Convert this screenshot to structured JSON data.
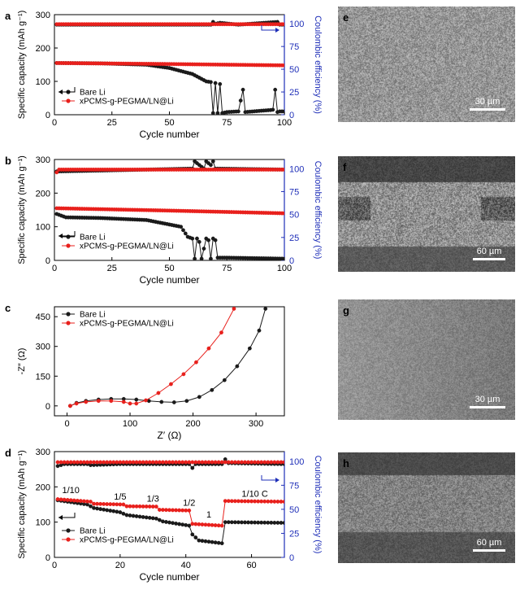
{
  "colors": {
    "bare": "#1a1a1a",
    "coated": "#e8201c",
    "ce_axis": "#1f2fb8"
  },
  "panels": [
    {
      "letter": "a",
      "xlabel": "Cycle number",
      "ylabel": "Specific capacity (mAh g⁻¹)",
      "y2label": "Coulombic efficiency (%)",
      "xlim": [
        0,
        100
      ],
      "xticks": [
        "0",
        "25",
        "50",
        "75",
        "100"
      ],
      "ylim": [
        0,
        300
      ],
      "yticks": [
        "0",
        "100",
        "200",
        "300"
      ],
      "y2lim": [
        0,
        110
      ],
      "y2ticks": [
        "0",
        "25",
        "50",
        "75",
        "100"
      ],
      "legend": [
        "Bare Li",
        "xPCMS-g-PEGMA/LN@Li"
      ],
      "legend_place": "lower-left",
      "image_label": "e",
      "scale_label": "30 µm"
    },
    {
      "letter": "b",
      "xlabel": "Cycle number",
      "ylabel": "Specific capacity (mAh g⁻¹)",
      "y2label": "Coulombic efficiency (%)",
      "xlim": [
        0,
        100
      ],
      "xticks": [
        "0",
        "25",
        "50",
        "75",
        "100"
      ],
      "ylim": [
        0,
        300
      ],
      "yticks": [
        "0",
        "100",
        "200",
        "300"
      ],
      "y2lim": [
        0,
        110
      ],
      "y2ticks": [
        "0",
        "25",
        "50",
        "75",
        "100"
      ],
      "legend": [
        "Bare Li",
        "xPCMS-g-PEGMA/LN@Li"
      ],
      "legend_place": "lower-left",
      "image_label": "f",
      "scale_label": "60 µm"
    },
    {
      "letter": "c",
      "xlabel": "Z′ (Ω)",
      "ylabel": "-Z″ (Ω)",
      "xlim": [
        -20,
        345
      ],
      "xticks": [
        "0",
        "100",
        "200",
        "300"
      ],
      "ylim": [
        -50,
        500
      ],
      "yticks": [
        "0",
        "150",
        "300",
        "450"
      ],
      "legend": [
        "Bare Li",
        "xPCMS-g-PEGMA/LN@Li"
      ],
      "legend_place": "top-left",
      "image_label": "g",
      "scale_label": "30 µm"
    },
    {
      "letter": "d",
      "xlabel": "Cycle number",
      "ylabel": "Specific capacity (mAh g⁻¹)",
      "y2label": "Coulombic efficiency (%)",
      "xlim": [
        0,
        70
      ],
      "xticks": [
        "0",
        "20",
        "40",
        "60"
      ],
      "ylim": [
        0,
        300
      ],
      "yticks": [
        "0",
        "100",
        "200",
        "300"
      ],
      "y2lim": [
        0,
        110
      ],
      "y2ticks": [
        "0",
        "25",
        "50",
        "75",
        "100"
      ],
      "legend": [
        "Bare Li",
        "xPCMS-g-PEGMA/LN@Li"
      ],
      "legend_place": "lower-left",
      "rate_labels": [
        "1/10",
        "1/5",
        "1/3",
        "1/2",
        "1",
        "1/10 C"
      ],
      "image_label": "h",
      "scale_label": "60 µm"
    }
  ],
  "chart_data": [
    {
      "type": "line",
      "panel": "a",
      "x": "cycle 1-100",
      "series": [
        {
          "name": "Bare Li",
          "axis": "capacity",
          "keypoints": [
            [
              1,
              155
            ],
            [
              20,
              154
            ],
            [
              40,
              150
            ],
            [
              50,
              140
            ],
            [
              60,
              122
            ],
            [
              66,
              100
            ],
            [
              68,
              98
            ],
            [
              69,
              5
            ],
            [
              70,
              95
            ],
            [
              71,
              5
            ],
            [
              72,
              92
            ],
            [
              73,
              5
            ],
            [
              75,
              8
            ],
            [
              80,
              10
            ],
            [
              82,
              75
            ],
            [
              83,
              8
            ],
            [
              90,
              12
            ],
            [
              94,
              14
            ],
            [
              95,
              15
            ],
            [
              96,
              75
            ],
            [
              97,
              8
            ],
            [
              98,
              10
            ]
          ]
        },
        {
          "name": "xPCMS-g-PEGMA/LN@Li",
          "axis": "capacity",
          "keypoints": [
            [
              1,
              155
            ],
            [
              50,
              152
            ],
            [
              100,
              148
            ]
          ]
        },
        {
          "name": "Bare Li CE",
          "axis": "coulombic_efficiency",
          "keypoints": [
            [
              1,
              99
            ],
            [
              68,
              99
            ],
            [
              69,
              102
            ],
            [
              70,
              100
            ],
            [
              72,
              101
            ],
            [
              80,
              99
            ],
            [
              97,
              102
            ],
            [
              98,
              99
            ]
          ]
        },
        {
          "name": "xPCMS-g-PEGMA/LN@Li CE",
          "axis": "coulombic_efficiency",
          "keypoints": [
            [
              1,
              99.5
            ],
            [
              100,
              99.5
            ]
          ]
        }
      ]
    },
    {
      "type": "line",
      "panel": "b",
      "x": "cycle 1-100",
      "series": [
        {
          "name": "Bare Li",
          "axis": "capacity",
          "keypoints": [
            [
              1,
              138
            ],
            [
              5,
              128
            ],
            [
              20,
              126
            ],
            [
              40,
              120
            ],
            [
              55,
              100
            ],
            [
              58,
              70
            ],
            [
              60,
              65
            ],
            [
              61,
              5
            ],
            [
              62,
              65
            ],
            [
              63,
              55
            ],
            [
              64,
              5
            ],
            [
              66,
              65
            ],
            [
              67,
              60
            ],
            [
              68,
              5
            ],
            [
              69,
              65
            ],
            [
              70,
              60
            ],
            [
              71,
              8
            ],
            [
              75,
              8
            ],
            [
              100,
              5
            ]
          ]
        },
        {
          "name": "xPCMS-g-PEGMA/LN@Li",
          "axis": "capacity",
          "keypoints": [
            [
              1,
              155
            ],
            [
              50,
              148
            ],
            [
              100,
              140
            ]
          ]
        },
        {
          "name": "Bare Li CE",
          "axis": "coulombic_efficiency",
          "keypoints": [
            [
              1,
              97
            ],
            [
              60,
              100
            ],
            [
              61,
              108
            ],
            [
              63,
              104
            ],
            [
              65,
              100
            ],
            [
              66,
              108
            ],
            [
              68,
              104
            ],
            [
              69,
              108
            ],
            [
              70,
              100
            ],
            [
              100,
              99
            ]
          ]
        },
        {
          "name": "xPCMS-g-PEGMA/LN@Li CE",
          "axis": "coulombic_efficiency",
          "keypoints": [
            [
              1,
              96
            ],
            [
              2,
              99
            ],
            [
              100,
              99
            ]
          ]
        }
      ]
    },
    {
      "type": "line",
      "panel": "c",
      "series": [
        {
          "name": "Bare Li",
          "points": [
            [
              5,
              0
            ],
            [
              15,
              15
            ],
            [
              30,
              25
            ],
            [
              50,
              32
            ],
            [
              70,
              35
            ],
            [
              90,
              35
            ],
            [
              110,
              32
            ],
            [
              130,
              25
            ],
            [
              150,
              20
            ],
            [
              170,
              18
            ],
            [
              190,
              25
            ],
            [
              210,
              45
            ],
            [
              230,
              80
            ],
            [
              250,
              130
            ],
            [
              270,
              200
            ],
            [
              290,
              290
            ],
            [
              305,
              380
            ],
            [
              315,
              490
            ]
          ]
        },
        {
          "name": "xPCMS-g-PEGMA/LN@Li",
          "points": [
            [
              5,
              0
            ],
            [
              15,
              12
            ],
            [
              30,
              20
            ],
            [
              50,
              25
            ],
            [
              70,
              25
            ],
            [
              90,
              20
            ],
            [
              100,
              12
            ],
            [
              110,
              12
            ],
            [
              125,
              28
            ],
            [
              145,
              65
            ],
            [
              165,
              110
            ],
            [
              185,
              160
            ],
            [
              205,
              220
            ],
            [
              225,
              290
            ],
            [
              245,
              370
            ],
            [
              265,
              490
            ]
          ]
        }
      ]
    },
    {
      "type": "line",
      "panel": "d",
      "x": "cycle 1-70",
      "series": [
        {
          "name": "Bare Li",
          "axis": "capacity",
          "keypoints": [
            [
              1,
              162
            ],
            [
              10,
              150
            ],
            [
              12,
              140
            ],
            [
              20,
              128
            ],
            [
              22,
              120
            ],
            [
              31,
              110
            ],
            [
              33,
              102
            ],
            [
              41,
              90
            ],
            [
              42,
              65
            ],
            [
              44,
              48
            ],
            [
              51,
              40
            ],
            [
              52,
              100
            ],
            [
              70,
              98
            ]
          ]
        },
        {
          "name": "xPCMS-g-PEGMA/LN@Li",
          "axis": "capacity",
          "keypoints": [
            [
              1,
              165
            ],
            [
              11,
              158
            ],
            [
              12,
              152
            ],
            [
              21,
              150
            ],
            [
              22,
              145
            ],
            [
              31,
              144
            ],
            [
              32,
              135
            ],
            [
              41,
              133
            ],
            [
              42,
              95
            ],
            [
              51,
              90
            ],
            [
              52,
              160
            ],
            [
              70,
              158
            ]
          ]
        },
        {
          "name": "Bare Li CE",
          "axis": "coulombic_efficiency",
          "keypoints": [
            [
              1,
              95
            ],
            [
              3,
              97
            ],
            [
              10,
              97
            ],
            [
              11,
              96
            ],
            [
              20,
              97
            ],
            [
              41,
              97
            ],
            [
              42,
              93
            ],
            [
              43,
              97
            ],
            [
              51,
              97
            ],
            [
              52,
              102
            ],
            [
              53,
              98
            ],
            [
              70,
              97
            ]
          ]
        },
        {
          "name": "xPCMS-g-PEGMA/LN@Li CE",
          "axis": "coulombic_efficiency",
          "keypoints": [
            [
              1,
              99
            ],
            [
              70,
              99
            ]
          ]
        }
      ]
    }
  ]
}
